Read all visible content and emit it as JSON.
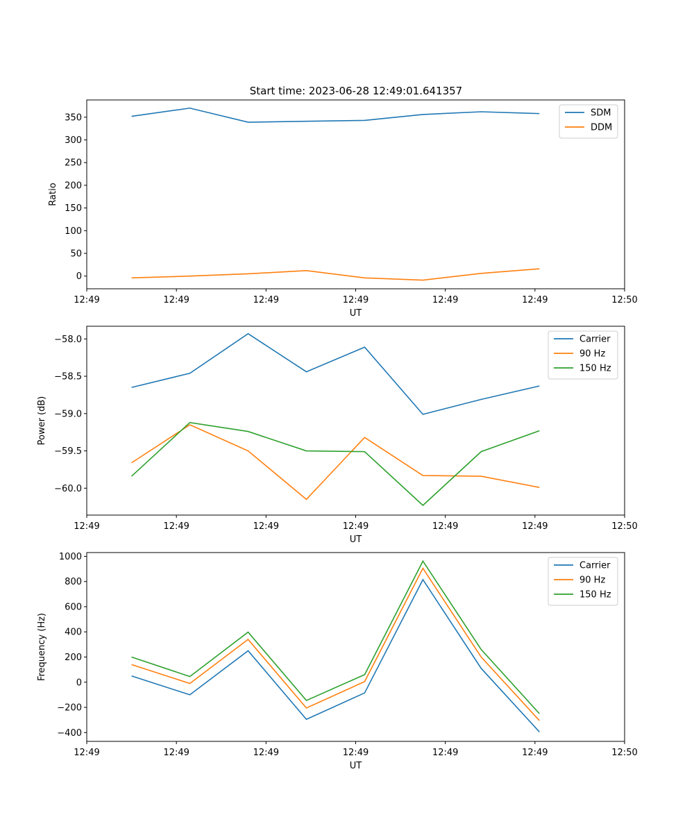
{
  "figure": {
    "title": "Start time: 2023-06-28 12:49:01.641357"
  },
  "colors": {
    "blue": "#1f77b4",
    "orange": "#ff7f0e",
    "green": "#2ca02c"
  },
  "chart_data": [
    {
      "type": "line",
      "xlabel": "UT",
      "ylabel": "Ratio",
      "x": [
        0.5,
        1.15,
        1.8,
        2.45,
        3.1,
        3.75,
        4.4,
        5.05
      ],
      "xlim": [
        0,
        6
      ],
      "x_ticks": [
        0,
        1,
        2,
        3,
        4,
        5,
        6
      ],
      "x_tick_labels": [
        "12:49",
        "12:49",
        "12:49",
        "12:49",
        "12:49",
        "12:49",
        "12:50"
      ],
      "ylim": [
        -28,
        388
      ],
      "y_ticks": [
        0,
        50,
        100,
        150,
        200,
        250,
        300,
        350
      ],
      "legend_position": "top-right",
      "series": [
        {
          "name": "SDM",
          "color": "#1f77b4",
          "values": [
            352,
            370,
            339,
            341,
            343,
            356,
            362,
            358
          ]
        },
        {
          "name": "DDM",
          "color": "#ff7f0e",
          "values": [
            -4,
            0,
            5,
            12,
            -4,
            -9,
            6,
            16
          ]
        }
      ]
    },
    {
      "type": "line",
      "xlabel": "UT",
      "ylabel": "Power (dB)",
      "x": [
        0.5,
        1.15,
        1.8,
        2.45,
        3.1,
        3.75,
        4.4,
        5.05
      ],
      "xlim": [
        0,
        6
      ],
      "x_ticks": [
        0,
        1,
        2,
        3,
        4,
        5,
        6
      ],
      "x_tick_labels": [
        "12:49",
        "12:49",
        "12:49",
        "12:49",
        "12:49",
        "12:49",
        "12:50"
      ],
      "ylim": [
        -60.36,
        -57.83
      ],
      "y_ticks": [
        -60.0,
        -59.5,
        -59.0,
        -58.5,
        -58.0
      ],
      "y_tick_labels": [
        "−60.0",
        "−59.5",
        "−59.0",
        "−58.5",
        "−58.0"
      ],
      "legend_position": "top-right",
      "series": [
        {
          "name": "Carrier",
          "color": "#1f77b4",
          "values": [
            -58.65,
            -58.46,
            -57.93,
            -58.44,
            -58.11,
            -59.01,
            -58.81,
            -58.63
          ]
        },
        {
          "name": "90 Hz",
          "color": "#ff7f0e",
          "values": [
            -59.66,
            -59.15,
            -59.5,
            -60.15,
            -59.32,
            -59.83,
            -59.84,
            -59.99
          ]
        },
        {
          "name": "150 Hz",
          "color": "#2ca02c",
          "values": [
            -59.84,
            -59.12,
            -59.24,
            -59.5,
            -59.51,
            -60.23,
            -59.51,
            -59.23
          ]
        }
      ]
    },
    {
      "type": "line",
      "xlabel": "UT",
      "ylabel": "Frequency (Hz)",
      "x": [
        0.5,
        1.15,
        1.8,
        2.45,
        3.1,
        3.75,
        4.4,
        5.05
      ],
      "xlim": [
        0,
        6
      ],
      "x_ticks": [
        0,
        1,
        2,
        3,
        4,
        5,
        6
      ],
      "x_tick_labels": [
        "12:49",
        "12:49",
        "12:49",
        "12:49",
        "12:49",
        "12:49",
        "12:50"
      ],
      "ylim": [
        -470,
        1030
      ],
      "y_ticks": [
        -400,
        -200,
        0,
        200,
        400,
        600,
        800,
        1000
      ],
      "y_tick_labels": [
        "−400",
        "−200",
        "0",
        "200",
        "400",
        "600",
        "800",
        "1000"
      ],
      "legend_position": "top-right",
      "series": [
        {
          "name": "Carrier",
          "color": "#1f77b4",
          "values": [
            50,
            -100,
            250,
            -295,
            -85,
            815,
            110,
            -395
          ]
        },
        {
          "name": "90 Hz",
          "color": "#ff7f0e",
          "values": [
            140,
            -10,
            340,
            -205,
            5,
            905,
            200,
            -305
          ]
        },
        {
          "name": "150 Hz",
          "color": "#2ca02c",
          "values": [
            200,
            45,
            398,
            -145,
            60,
            962,
            260,
            -250
          ]
        }
      ]
    }
  ]
}
